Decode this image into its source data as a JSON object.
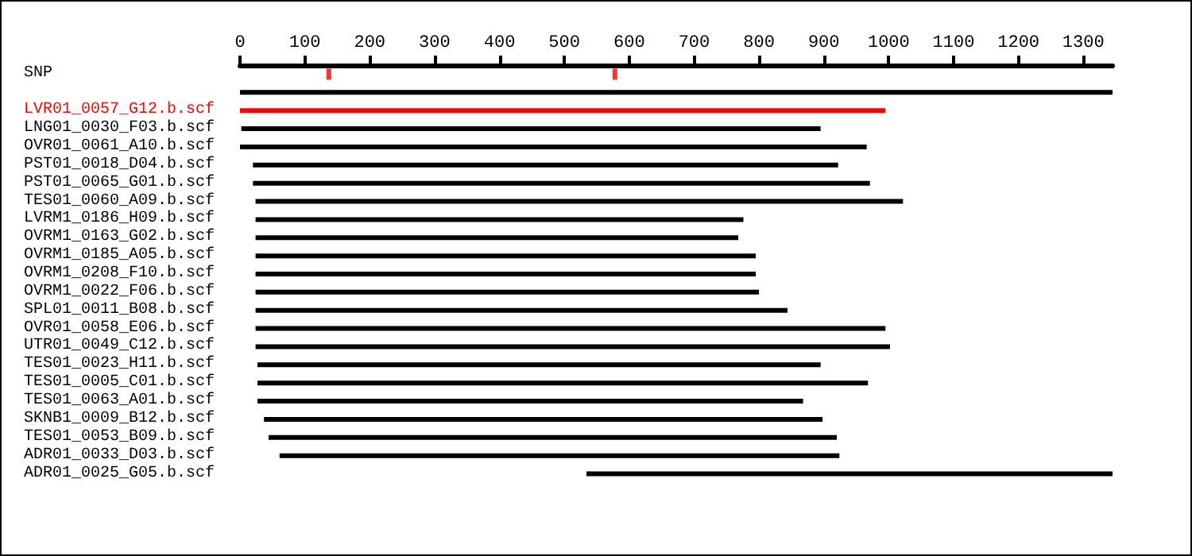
{
  "chart_data": {
    "type": "bar",
    "orientation": "horizontal",
    "categories": [
      "SNP",
      null,
      "LVR01_0057_G12.b.scf",
      "LNG01_0030_F03.b.scf",
      "OVR01_0061_A10.b.scf",
      "PST01_0018_D04.b.scf",
      "PST01_0065_G01.b.scf",
      "TES01_0060_A09.b.scf",
      "LVRM1_0186_H09.b.scf",
      "OVRM1_0163_G02.b.scf",
      "OVRM1_0185_A05.b.scf",
      "OVRM1_0208_F10.b.scf",
      "OVRM1_0022_F06.b.scf",
      "SPL01_0011_B08.b.scf",
      "OVR01_0058_E06.b.scf",
      "UTR01_0049_C12.b.scf",
      "TES01_0023_H11.b.scf",
      "TES01_0005_C01.b.scf",
      "TES01_0063_A01.b.scf",
      "SKNB1_0009_B12.b.scf",
      "TES01_0053_B09.b.scf",
      "ADR01_0033_D03.b.scf",
      "ADR01_0025_G05.b.scf"
    ],
    "series": [
      {
        "values": [
          null,
          1345,
          995,
          893,
          966,
          902,
          951,
          998,
          752,
          744,
          771,
          771,
          776,
          820,
          971,
          978,
          868,
          941,
          841,
          861,
          876,
          863,
          811
        ],
        "base": [
          null,
          0,
          0,
          2,
          0,
          20,
          20,
          24,
          24,
          24,
          24,
          24,
          24,
          24,
          24,
          24,
          27,
          27,
          27,
          37,
          44,
          61,
          534
        ],
        "colors": [
          "#000000",
          "#000000",
          "#ff0000",
          "#000000",
          "#000000",
          "#000000",
          "#000000",
          "#000000",
          "#000000",
          "#000000",
          "#000000",
          "#000000",
          "#000000",
          "#000000",
          "#000000",
          "#000000",
          "#000000",
          "#000000",
          "#000000",
          "#000000",
          "#000000",
          "#000000",
          "#000000"
        ]
      },
      {
        "type": "scatter",
        "x": [
          "SNP",
          "SNP"
        ],
        "values": [
          137,
          578
        ],
        "color": "#ff0000",
        "marker": "square"
      }
    ],
    "xlim": [
      0,
      1345
    ],
    "xticks": [
      0,
      100,
      200,
      300,
      400,
      500,
      600,
      700,
      800,
      900,
      1000,
      1100,
      1200,
      1300
    ],
    "grid": false
  }
}
